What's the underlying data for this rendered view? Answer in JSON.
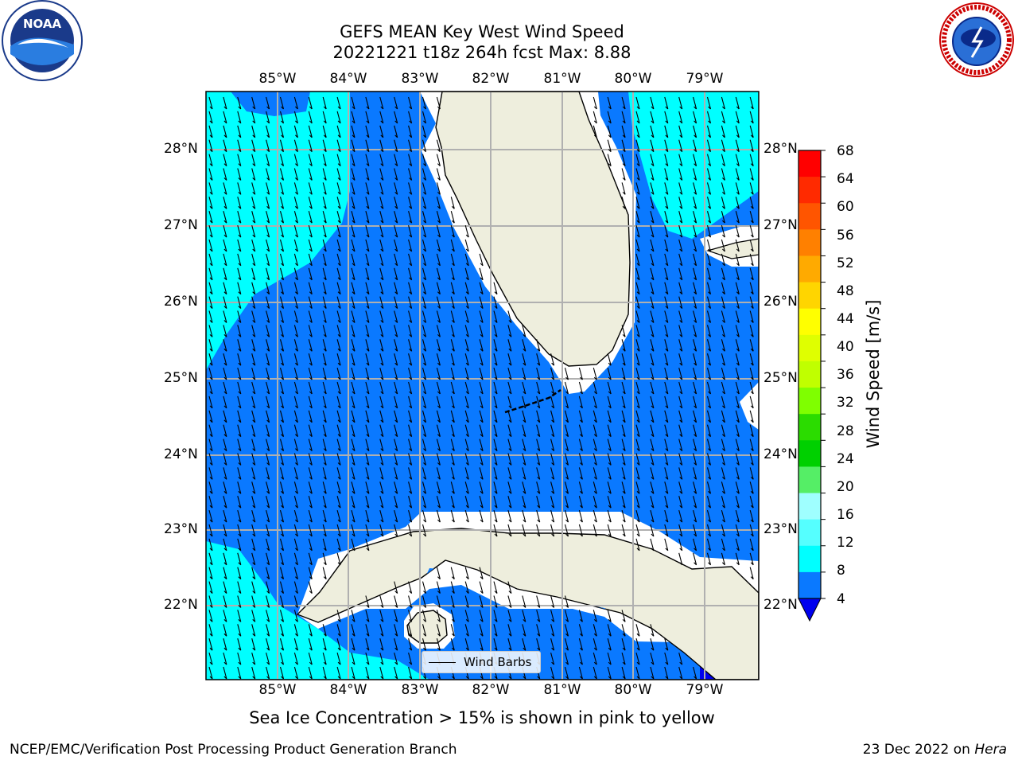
{
  "title": {
    "line1": "GEFS MEAN Key West Wind Speed",
    "line2": "20221221 t18z 264h fcst   Max: 8.88"
  },
  "map": {
    "lon_labels": [
      "85°W",
      "84°W",
      "83°W",
      "82°W",
      "81°W",
      "80°W",
      "79°W"
    ],
    "lat_labels": [
      "28°N",
      "27°N",
      "26°N",
      "25°N",
      "24°N",
      "23°N",
      "22°N"
    ],
    "colors": {
      "land": "#eeeedd",
      "wind_4_8": "#0a79ff",
      "wind_8_12": "#00ffff",
      "wind_lt_4": "#0000ee",
      "grid": "#b0b0b0"
    },
    "legend": {
      "label": "Wind Barbs"
    }
  },
  "colorbar": {
    "title": "Wind Speed [m/s]",
    "ticks": [
      "68",
      "64",
      "60",
      "56",
      "52",
      "48",
      "44",
      "40",
      "36",
      "32",
      "28",
      "24",
      "20",
      "16",
      "12",
      "8",
      "4"
    ],
    "colors": [
      "#ff0000",
      "#ff2a00",
      "#ff5500",
      "#ff8000",
      "#ffaa00",
      "#ffd500",
      "#ffff00",
      "#dfff00",
      "#c0ff00",
      "#7fff00",
      "#2bdc00",
      "#00d000",
      "#55ee66",
      "#9fffff",
      "#55ffff",
      "#00ffff",
      "#0a79ff"
    ]
  },
  "notes": {
    "sea_ice": "Sea Ice Concentration > 15% is shown in pink to yellow"
  },
  "footer": {
    "left": "NCEP/EMC/Verification Post Processing Product Generation Branch",
    "right_date": "23 Dec 2022 on ",
    "right_host": "Hera"
  },
  "logos": {
    "noaa": "NOAA",
    "nws": "NATIONAL WEATHER SERVICE"
  }
}
